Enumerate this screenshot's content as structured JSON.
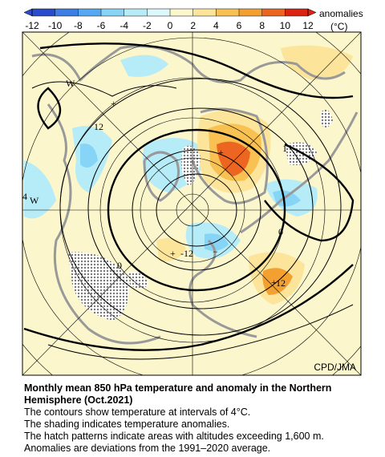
{
  "legend": {
    "title": "anomalies",
    "unit": "(°C)",
    "ticks": [
      -12,
      -10,
      -8,
      -6,
      -4,
      -2,
      0,
      2,
      4,
      6,
      8,
      10,
      12
    ],
    "colors": [
      "#2a4ccc",
      "#3c7ee6",
      "#55a8f2",
      "#86d4f6",
      "#b6ecf8",
      "#ddf8fa",
      "#fbf6cb",
      "#fce59a",
      "#f8c152",
      "#f3a030",
      "#ec6622",
      "#dd2414"
    ]
  },
  "map": {
    "labels": [
      "W",
      "12",
      "+",
      "1",
      "4",
      "W",
      "+",
      "0",
      "0",
      "+",
      "-12",
      "−",
      "12",
      "+"
    ],
    "credit": "CPD/JMA"
  },
  "caption": {
    "title": "Monthly mean 850 hPa temperature and anomaly in the Northern Hemisphere (Oct.2021)",
    "lines": [
      "The contours show temperature at intervals of 4°C.",
      "The shading indicates temperature anomalies.",
      "The hatch patterns indicate areas with altitudes exceeding 1,600 m.",
      "Anomalies are deviations from the 1991–2020 average."
    ]
  }
}
